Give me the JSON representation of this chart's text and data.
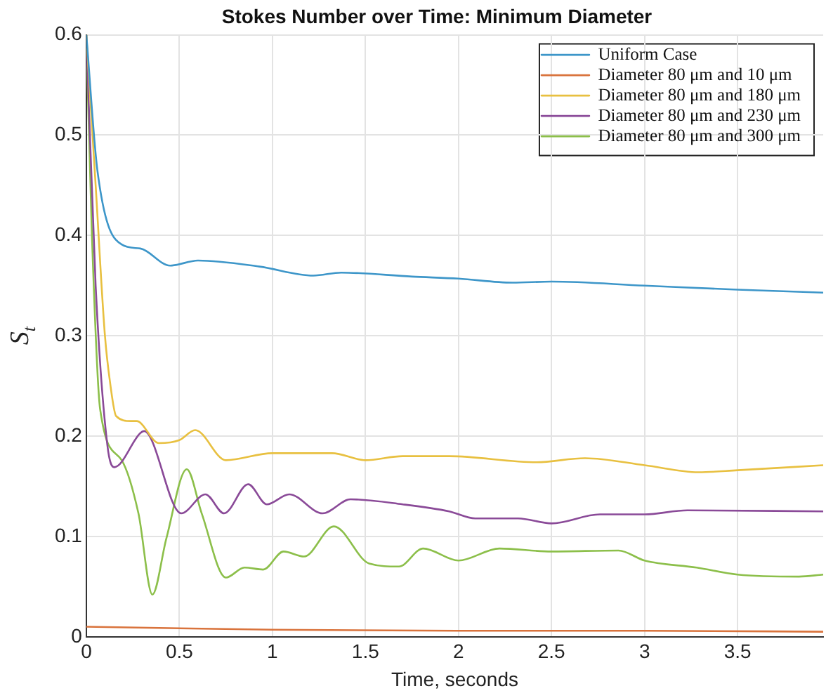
{
  "chart_data": {
    "type": "line",
    "title": "Stokes Number over Time: Minimum Diameter",
    "xlabel": "Time, seconds",
    "ylabel": "S$_{t}$",
    "xlim": [
      0,
      3.96
    ],
    "xticks": [
      0,
      0.5,
      1,
      1.5,
      2,
      2.5,
      3,
      3.5
    ],
    "ylim": [
      0,
      0.6
    ],
    "yticks": [
      0,
      0.1,
      0.2,
      0.3,
      0.4,
      0.5,
      0.6
    ],
    "grid": true,
    "legend": "top right",
    "marker": "none",
    "line_style": "solid",
    "series": [
      {
        "name": "Uniform Case",
        "color": "#3d96c9",
        "x": [
          0,
          0.06,
          0.19,
          0.29,
          0.45,
          0.6,
          0.93,
          1.22,
          1.37,
          1.75,
          2.0,
          2.29,
          2.5,
          3.0,
          3.5,
          3.96
        ],
        "values": [
          0.6,
          0.464,
          0.391,
          0.387,
          0.37,
          0.375,
          0.369,
          0.36,
          0.363,
          0.359,
          0.357,
          0.353,
          0.354,
          0.35,
          0.346,
          0.343
        ]
      },
      {
        "name": "Diameter 80 μm and 10 μm",
        "color": "#d9733c",
        "x": [
          0,
          1,
          2,
          3,
          3.96
        ],
        "values": [
          0.01,
          0.007,
          0.006,
          0.006,
          0.005
        ]
      },
      {
        "name": "Diameter 80 μm and 180 μm",
        "color": "#e8c040",
        "x": [
          0,
          0.05,
          0.1,
          0.13,
          0.16,
          0.24,
          0.27,
          0.39,
          0.5,
          0.585,
          0.75,
          1.0,
          1.32,
          1.5,
          1.7,
          1.95,
          2.42,
          2.68,
          3.0,
          3.29,
          3.5,
          3.96
        ],
        "values": [
          0.6,
          0.45,
          0.3,
          0.25,
          0.22,
          0.215,
          0.215,
          0.193,
          0.196,
          0.206,
          0.176,
          0.183,
          0.183,
          0.176,
          0.18,
          0.18,
          0.174,
          0.178,
          0.171,
          0.164,
          0.166,
          0.171
        ]
      },
      {
        "name": "Diameter 80 μm and 230 μm",
        "color": "#8a4a98",
        "x": [
          0,
          0.05,
          0.113,
          0.15,
          0.29,
          0.31,
          0.51,
          0.64,
          0.74,
          0.87,
          0.97,
          1.09,
          1.27,
          1.42,
          1.7,
          1.95,
          2.09,
          2.32,
          2.5,
          2.76,
          3.0,
          3.23,
          3.96
        ],
        "values": [
          0.6,
          0.35,
          0.191,
          0.169,
          0.203,
          0.205,
          0.123,
          0.142,
          0.123,
          0.152,
          0.132,
          0.142,
          0.123,
          0.137,
          0.132,
          0.125,
          0.118,
          0.118,
          0.113,
          0.122,
          0.122,
          0.126,
          0.125
        ]
      },
      {
        "name": "Diameter 80 μm and 300 μm",
        "color": "#8cbf4a",
        "x": [
          0,
          0.03,
          0.074,
          0.19,
          0.28,
          0.355,
          0.43,
          0.54,
          0.62,
          0.75,
          0.85,
          0.95,
          1.06,
          1.17,
          1.33,
          1.52,
          1.68,
          1.81,
          2.0,
          2.22,
          2.5,
          2.86,
          3.0,
          3.28,
          3.5,
          3.83,
          3.96
        ],
        "values": [
          0.6,
          0.4,
          0.227,
          0.176,
          0.123,
          0.042,
          0.098,
          0.167,
          0.123,
          0.059,
          0.069,
          0.067,
          0.085,
          0.08,
          0.11,
          0.073,
          0.07,
          0.088,
          0.076,
          0.088,
          0.085,
          0.086,
          0.076,
          0.069,
          0.062,
          0.06,
          0.062
        ]
      }
    ]
  }
}
